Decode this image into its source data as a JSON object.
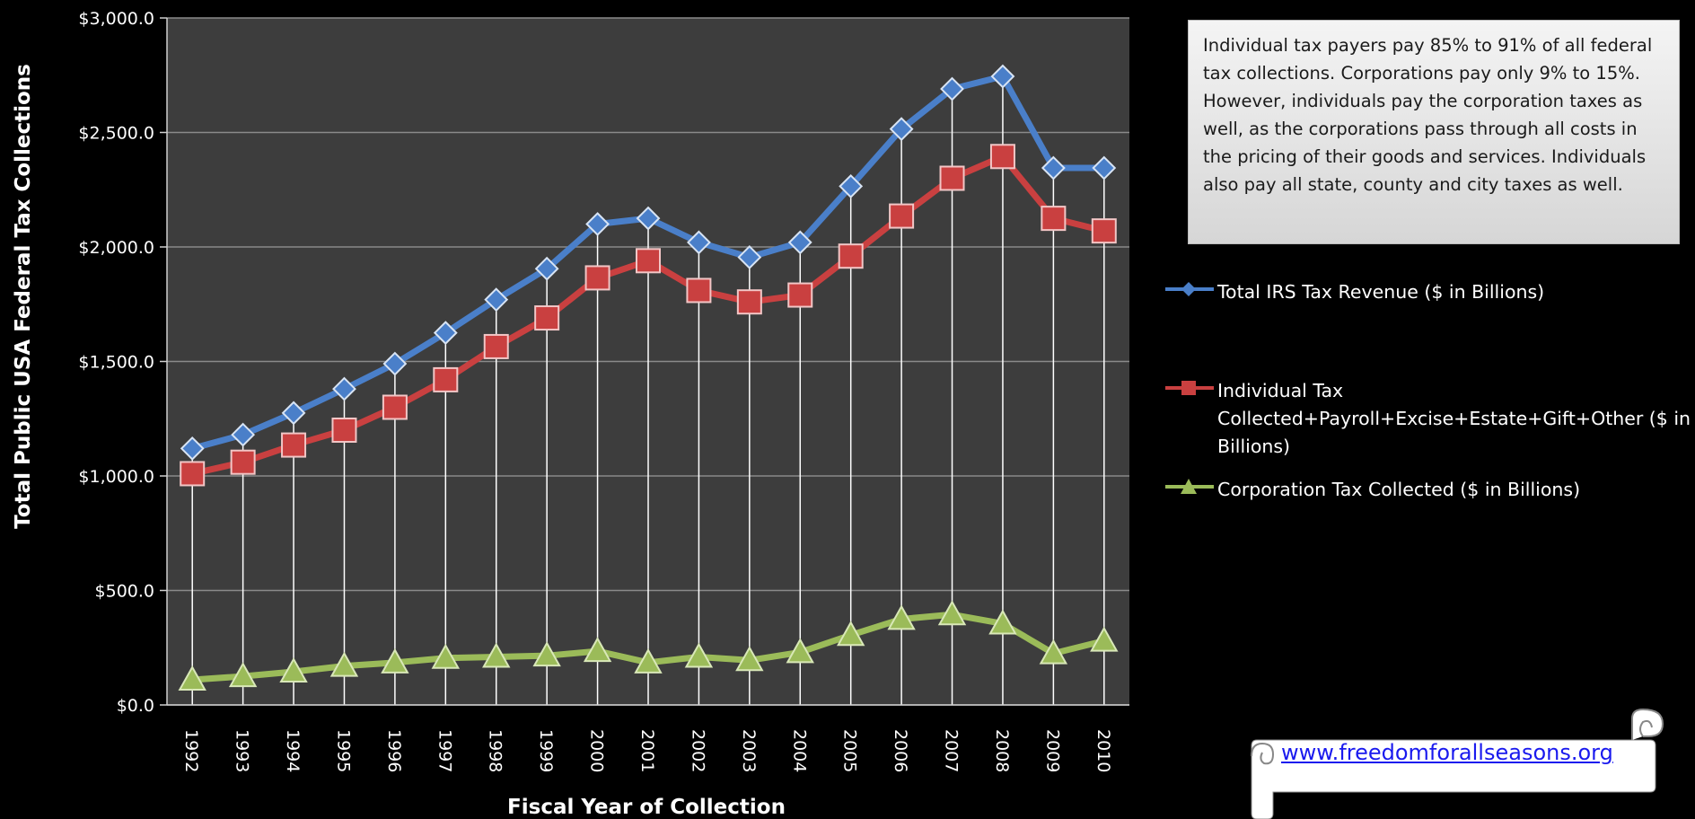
{
  "chart_data": {
    "type": "line",
    "categories": [
      "1992",
      "1993",
      "1994",
      "1995",
      "1996",
      "1997",
      "1998",
      "1999",
      "2000",
      "2001",
      "2002",
      "2003",
      "2004",
      "2005",
      "2006",
      "2007",
      "2008",
      "2009",
      "2010"
    ],
    "series": [
      {
        "name": "Total IRS Tax Revenue ($ in Billions)",
        "color": "#4a7fc9",
        "marker": "diamond",
        "values": [
          1120,
          1180,
          1275,
          1380,
          1490,
          1625,
          1770,
          1905,
          2100,
          2125,
          2020,
          1955,
          2020,
          2265,
          2515,
          2690,
          2745,
          2345,
          2345
        ]
      },
      {
        "name": "Individual Tax Collected+Payroll+Excise+Estate+Gift+Other ($ in Billions)",
        "color": "#c94040",
        "marker": "square",
        "values": [
          1010,
          1060,
          1135,
          1200,
          1300,
          1420,
          1565,
          1690,
          1865,
          1940,
          1810,
          1760,
          1790,
          1960,
          2135,
          2300,
          2395,
          2125,
          2070
        ]
      },
      {
        "name": "Corporation Tax Collected ($ in Billions)",
        "color": "#9bbb59",
        "marker": "triangle",
        "values": [
          110,
          125,
          145,
          170,
          185,
          205,
          210,
          215,
          235,
          185,
          210,
          195,
          230,
          305,
          375,
          395,
          355,
          225,
          280
        ]
      }
    ],
    "ylim": [
      0,
      3000
    ],
    "yticks": [
      "$0.0",
      "$500.0",
      "$1,000.0",
      "$1,500.0",
      "$2,000.0",
      "$2,500.0",
      "$3,000.0"
    ],
    "xlabel": "Fiscal Year of Collection",
    "ylabel": "Total Public USA  Federal Tax  Collections",
    "grid": true,
    "legend_position": "right"
  },
  "annotation": {
    "text": "Individual  tax payers  pay  85% to 91% of all federal tax collections.   Corporations pay only 9% to 15%.  However,  individuals pay the corporation taxes as well, as the corporations pass through all costs in the  pricing of their goods and services. Individuals  also pay all state, county and  city taxes as well."
  },
  "link": {
    "text": "www.freedomforallseasons.org"
  },
  "colors": {
    "plot_background": "#3d3d3d",
    "page_background": "#000000",
    "drop_lines": "#ffffff"
  }
}
